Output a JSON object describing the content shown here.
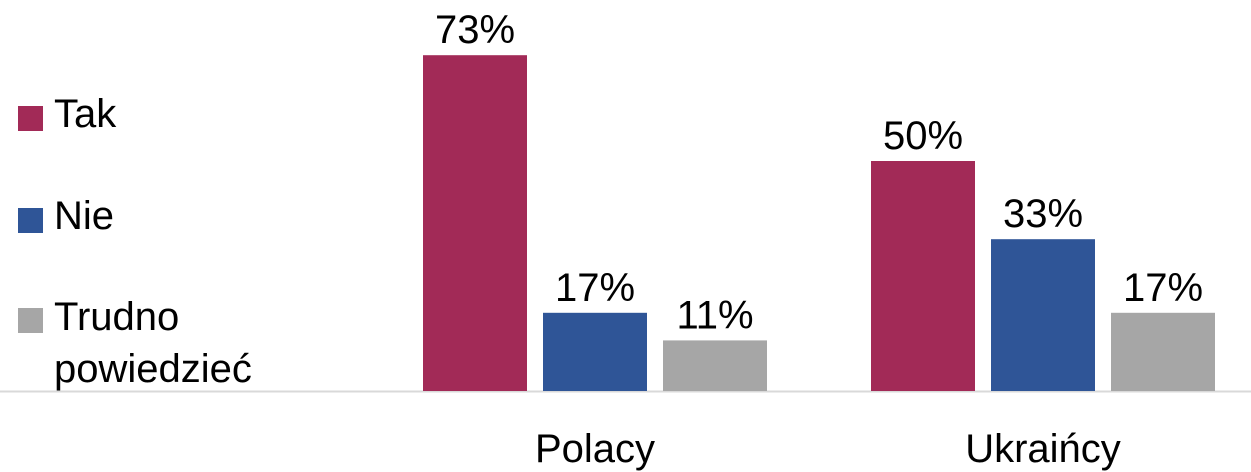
{
  "chart_data": {
    "type": "bar",
    "categories": [
      "Polacy",
      "Ukraińcy"
    ],
    "series": [
      {
        "name": "Tak",
        "values": [
          73,
          50
        ],
        "labels": [
          "73%",
          "50%"
        ],
        "color": "#A22A57"
      },
      {
        "name": "Nie",
        "values": [
          17,
          33
        ],
        "labels": [
          "17%",
          "33%"
        ],
        "color": "#2F5597"
      },
      {
        "name": "Trudno powiedzieć",
        "values": [
          11,
          17
        ],
        "labels": [
          "11%",
          "17%"
        ],
        "color": "#A6A6A6"
      }
    ],
    "ylim": [
      0,
      80
    ],
    "grid": false,
    "legend_position": "left",
    "axis_color": "#D9D9D9"
  },
  "legend": {
    "items": [
      {
        "lines": [
          "Tak"
        ],
        "color": "#A22A57"
      },
      {
        "lines": [
          "Nie"
        ],
        "color": "#2F5597"
      },
      {
        "lines": [
          "Trudno",
          "powiedzieć"
        ],
        "color": "#A6A6A6"
      }
    ]
  }
}
